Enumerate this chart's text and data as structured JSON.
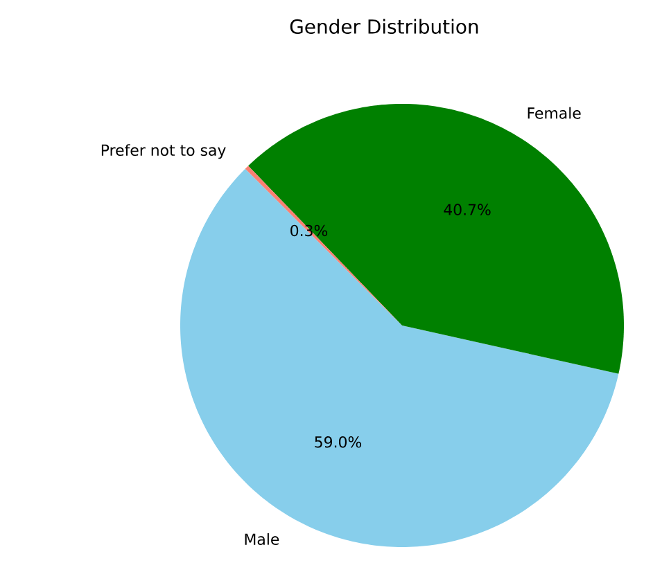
{
  "chart_data": {
    "type": "pie",
    "title": "Gender Distribution",
    "categories": [
      "Male",
      "Female",
      "Prefer not to say"
    ],
    "values": [
      59.0,
      40.7,
      0.3
    ],
    "colors": [
      "#87ceeb",
      "#008000",
      "#fa8072"
    ],
    "value_labels": [
      "59.0%",
      "40.7%",
      "0.3%"
    ]
  }
}
